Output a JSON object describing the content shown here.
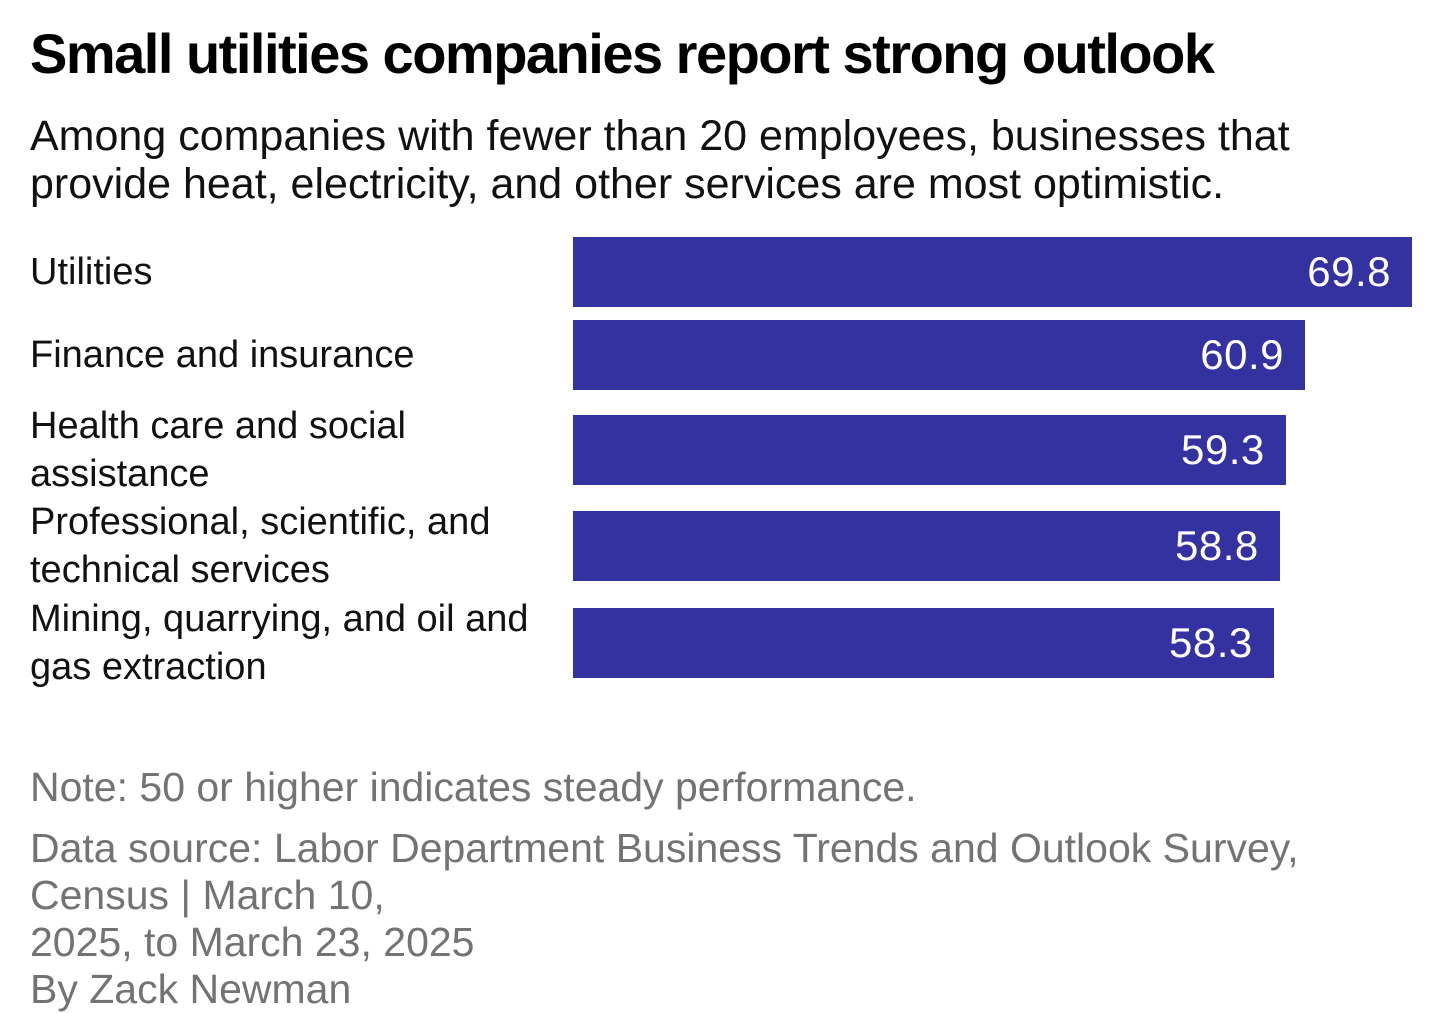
{
  "header": {
    "title": "Small utilities companies report strong outlook",
    "subtitle": "Among companies with fewer than 20 employees, businesses that provide heat, electricity, and other services are most optimistic.",
    "subtitle_lines": [
      "Among companies with fewer than 20 employees, businesses that",
      "provide heat, electricity, and other services are most optimistic."
    ]
  },
  "chart_data": {
    "type": "bar",
    "orientation": "horizontal",
    "categories": [
      "Utilities",
      "Finance and insurance",
      "Health care and social assistance",
      "Professional, scientific, and technical services",
      "Mining, quarrying, and oil and gas extraction"
    ],
    "category_lines": [
      [
        "Utilities"
      ],
      [
        "Finance and insurance"
      ],
      [
        "Health care and social",
        "assistance"
      ],
      [
        "Professional, scientific, and",
        "technical services"
      ],
      [
        "Mining, quarrying, and oil and",
        "gas extraction"
      ]
    ],
    "values": [
      69.8,
      60.9,
      59.3,
      58.8,
      58.3
    ],
    "value_labels": [
      "69.8",
      "60.9",
      "59.3",
      "58.8",
      "58.3"
    ],
    "xlim": [
      0,
      69.8
    ],
    "grid": false,
    "legend": false,
    "value_label_position": "inside-end",
    "bar_color": "#3431a0",
    "value_label_color": "#ffffff"
  },
  "footer": {
    "note": "Note: 50 or higher indicates steady performance.",
    "source": "Data source: Labor Department Business Trends and Outlook Survey, Census | March 10, 2025, to March 23, 2025",
    "source_lines": [
      "Data source: Labor Department Business Trends and Outlook Survey, Census | March 10,",
      "2025, to March 23, 2025"
    ],
    "byline": "By Zack Newman"
  },
  "colors": {
    "background": "#ffffff",
    "title_text": "#000000",
    "body_text": "#111111",
    "footer_text": "#737373",
    "bar": "#3431a0"
  }
}
